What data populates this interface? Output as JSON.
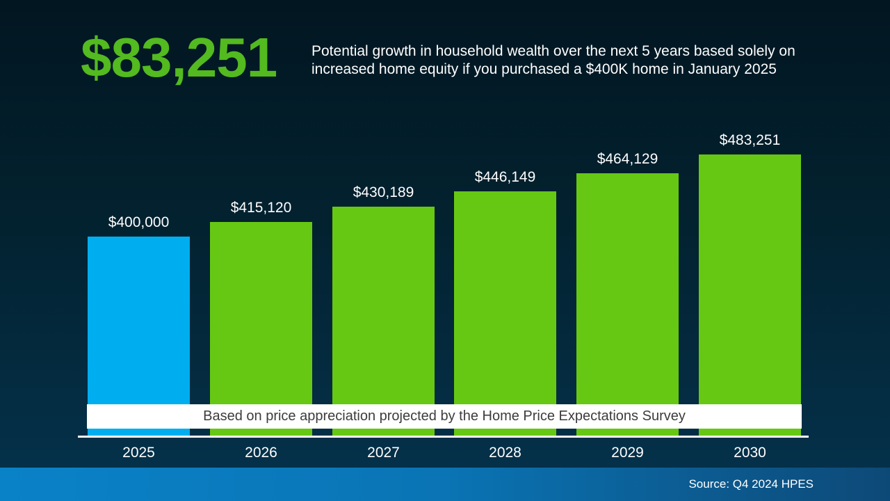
{
  "headline": {
    "value": "$83,251"
  },
  "description": {
    "text": "Potential growth in household wealth over the next 5 years based solely on increased home equity if you purchased a $400K home in January 2025"
  },
  "banner": {
    "text": "Based on price appreciation projected by the Home Price Expectations Survey"
  },
  "footer": {
    "source": "Source: Q4 2024 HPES"
  },
  "colors": {
    "headline_green": "#53ba1f",
    "highlight_bar_blue": "#00aeef",
    "bar_green": "#66c813",
    "footer_blue_left": "#0a82c8",
    "footer_blue_right": "#0d4977",
    "background_top": "#021621",
    "background_bottom": "#05324b"
  },
  "chart_data": {
    "type": "bar",
    "title": "",
    "xlabel": "",
    "ylabel": "",
    "categories": [
      "2025",
      "2026",
      "2027",
      "2028",
      "2029",
      "2030"
    ],
    "values": [
      400000,
      415120,
      430189,
      446149,
      464129,
      483251
    ],
    "value_labels": [
      "$400,000",
      "$415,120",
      "$430,189",
      "$446,149",
      "$464,129",
      "$483,251"
    ],
    "bar_colors": [
      "#00aeef",
      "#66c813",
      "#66c813",
      "#66c813",
      "#66c813",
      "#66c813"
    ],
    "grid": false,
    "legend": "none",
    "annotation": "Based on price appreciation projected by the Home Price Expectations Survey",
    "source": "Source: Q4 2024 HPES"
  }
}
